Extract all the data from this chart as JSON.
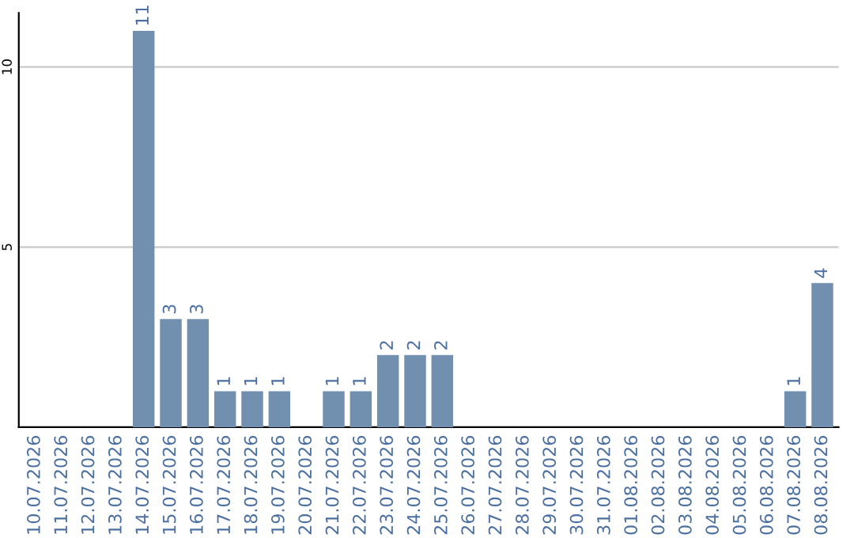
{
  "chart_data": {
    "type": "bar",
    "categories": [
      "10.07.2026",
      "11.07.2026",
      "12.07.2026",
      "13.07.2026",
      "14.07.2026",
      "15.07.2026",
      "16.07.2026",
      "17.07.2026",
      "18.07.2026",
      "19.07.2026",
      "20.07.2026",
      "21.07.2026",
      "22.07.2026",
      "23.07.2026",
      "24.07.2026",
      "25.07.2026",
      "26.07.2026",
      "27.07.2026",
      "28.07.2026",
      "29.07.2026",
      "30.07.2026",
      "31.07.2026",
      "01.08.2026",
      "02.08.2026",
      "03.08.2026",
      "04.08.2026",
      "05.08.2026",
      "06.08.2026",
      "07.08.2026",
      "08.08.2026"
    ],
    "values": [
      0,
      0,
      0,
      0,
      11,
      3,
      3,
      1,
      1,
      1,
      0,
      1,
      1,
      2,
      2,
      2,
      0,
      0,
      0,
      0,
      0,
      0,
      0,
      0,
      0,
      0,
      0,
      0,
      1,
      4
    ],
    "value_labels": [
      null,
      null,
      null,
      null,
      "11",
      "3",
      "3",
      "1",
      "1",
      "1",
      null,
      "1",
      "1",
      "2",
      "2",
      "2",
      null,
      null,
      null,
      null,
      null,
      null,
      null,
      null,
      null,
      null,
      null,
      null,
      "1",
      "4"
    ],
    "color": "#7190b0",
    "ylim": [
      0,
      11.5
    ],
    "yticks": [
      5,
      10
    ],
    "grid": "y"
  }
}
